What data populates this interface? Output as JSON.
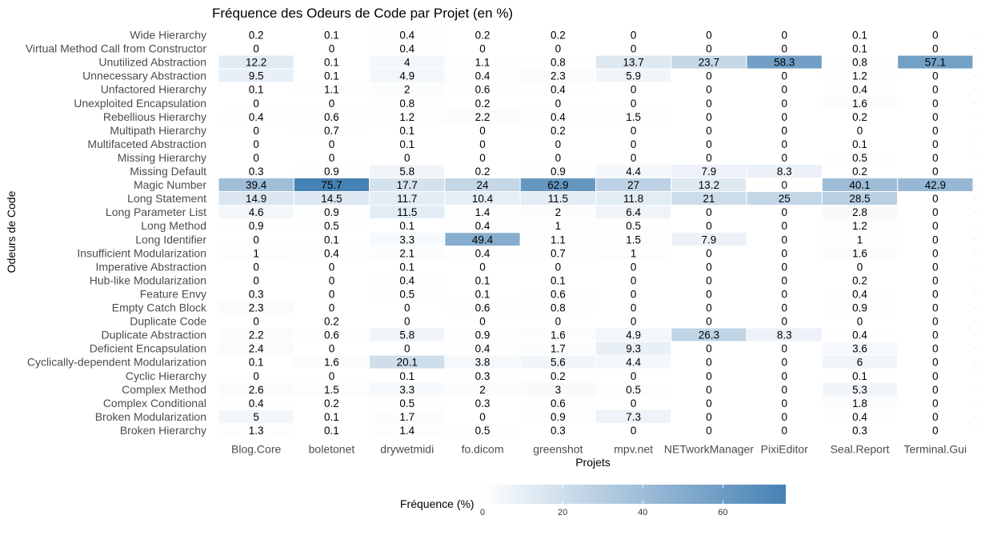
{
  "chart_data": {
    "type": "heatmap",
    "title": "Fréquence des Odeurs de Code par Projet (en %)",
    "xlabel": "Projets",
    "ylabel": "Odeurs de Code",
    "x_categories": [
      "Blog.Core",
      "boletonet",
      "drywetmidi",
      "fo.dicom",
      "greenshot",
      "mpv.net",
      "NETworkManager",
      "PixiEditor",
      "Seal.Report",
      "Terminal.Gui"
    ],
    "y_categories": [
      "Wide Hierarchy",
      "Virtual Method Call from Constructor",
      "Unutilized Abstraction",
      "Unnecessary Abstraction",
      "Unfactored Hierarchy",
      "Unexploited Encapsulation",
      "Rebellious Hierarchy",
      "Multipath Hierarchy",
      "Multifaceted Abstraction",
      "Missing Hierarchy",
      "Missing Default",
      "Magic Number",
      "Long Statement",
      "Long Parameter List",
      "Long Method",
      "Long Identifier",
      "Insufficient Modularization",
      "Imperative Abstraction",
      "Hub-like Modularization",
      "Feature Envy",
      "Empty Catch Block",
      "Duplicate Code",
      "Duplicate Abstraction",
      "Deficient Encapsulation",
      "Cyclically-dependent Modularization",
      "Cyclic Hierarchy",
      "Complex Method",
      "Complex Conditional",
      "Broken Modularization",
      "Broken Hierarchy"
    ],
    "values": [
      [
        0.2,
        0.1,
        0.4,
        0.2,
        0.2,
        0,
        0,
        0,
        0.1,
        0
      ],
      [
        0,
        0,
        0.4,
        0,
        0,
        0,
        0,
        0,
        0.1,
        0
      ],
      [
        12.2,
        0.1,
        4,
        1.1,
        0.8,
        13.7,
        23.7,
        58.3,
        0.8,
        57.1
      ],
      [
        9.5,
        0.1,
        4.9,
        0.4,
        2.3,
        5.9,
        0,
        0,
        1.2,
        0
      ],
      [
        0.1,
        1.1,
        2,
        0.6,
        0.4,
        0,
        0,
        0,
        0.4,
        0
      ],
      [
        0,
        0,
        0.8,
        0.2,
        0,
        0,
        0,
        0,
        1.6,
        0
      ],
      [
        0.4,
        0.6,
        1.2,
        2.2,
        0.4,
        1.5,
        0,
        0,
        0.2,
        0
      ],
      [
        0,
        0.7,
        0.1,
        0,
        0.2,
        0,
        0,
        0,
        0,
        0
      ],
      [
        0,
        0,
        0.1,
        0,
        0,
        0,
        0,
        0,
        0.1,
        0
      ],
      [
        0,
        0,
        0,
        0,
        0,
        0,
        0,
        0,
        0.5,
        0
      ],
      [
        0.3,
        0.9,
        5.8,
        0.2,
        0.9,
        4.4,
        7.9,
        8.3,
        0.2,
        0
      ],
      [
        39.4,
        75.7,
        17.7,
        24,
        62.9,
        27,
        13.2,
        0,
        40.1,
        42.9
      ],
      [
        14.9,
        14.5,
        11.7,
        10.4,
        11.5,
        11.8,
        21,
        25,
        28.5,
        0
      ],
      [
        4.6,
        0.9,
        11.5,
        1.4,
        2,
        6.4,
        0,
        0,
        2.8,
        0
      ],
      [
        0.9,
        0.5,
        0.1,
        0.4,
        1,
        0.5,
        0,
        0,
        1.2,
        0
      ],
      [
        0,
        0.1,
        3.3,
        49.4,
        1.1,
        1.5,
        7.9,
        0,
        1,
        0
      ],
      [
        1,
        0.4,
        2.1,
        0.4,
        0.7,
        1,
        0,
        0,
        1.6,
        0
      ],
      [
        0,
        0,
        0.1,
        0,
        0,
        0,
        0,
        0,
        0,
        0
      ],
      [
        0,
        0,
        0.4,
        0.1,
        0.1,
        0,
        0,
        0,
        0.2,
        0
      ],
      [
        0.3,
        0,
        0.5,
        0.1,
        0.6,
        0,
        0,
        0,
        0.4,
        0
      ],
      [
        2.3,
        0,
        0,
        0.6,
        0.8,
        0,
        0,
        0,
        0.9,
        0
      ],
      [
        0,
        0.2,
        0,
        0,
        0,
        0,
        0,
        0,
        0,
        0
      ],
      [
        2.2,
        0.6,
        5.8,
        0.9,
        1.6,
        4.9,
        26.3,
        8.3,
        0.4,
        0
      ],
      [
        2.4,
        0,
        0,
        0.4,
        1.7,
        9.3,
        0,
        0,
        3.6,
        0
      ],
      [
        0.1,
        1.6,
        20.1,
        3.8,
        5.6,
        4.4,
        0,
        0,
        6,
        0
      ],
      [
        0,
        0,
        0.1,
        0.3,
        0.2,
        0,
        0,
        0,
        0.1,
        0
      ],
      [
        2.6,
        1.5,
        3.3,
        2,
        3,
        0.5,
        0,
        0,
        5.3,
        0
      ],
      [
        0.4,
        0.2,
        0.5,
        0.3,
        0.6,
        0,
        0,
        0,
        1.8,
        0
      ],
      [
        5,
        0.1,
        1.7,
        0,
        0.9,
        7.3,
        0,
        0,
        0.4,
        0
      ],
      [
        1.3,
        0.1,
        1.4,
        0.5,
        0.3,
        0,
        0,
        0,
        0.3,
        0
      ]
    ],
    "color_scale": {
      "low": "#ffffff",
      "high": "#4682b4",
      "min": 0,
      "max": 75.7
    },
    "legend": {
      "title": "Fréquence (%)",
      "ticks": [
        0,
        20,
        40,
        60
      ],
      "position": "bottom"
    },
    "grid": true
  }
}
